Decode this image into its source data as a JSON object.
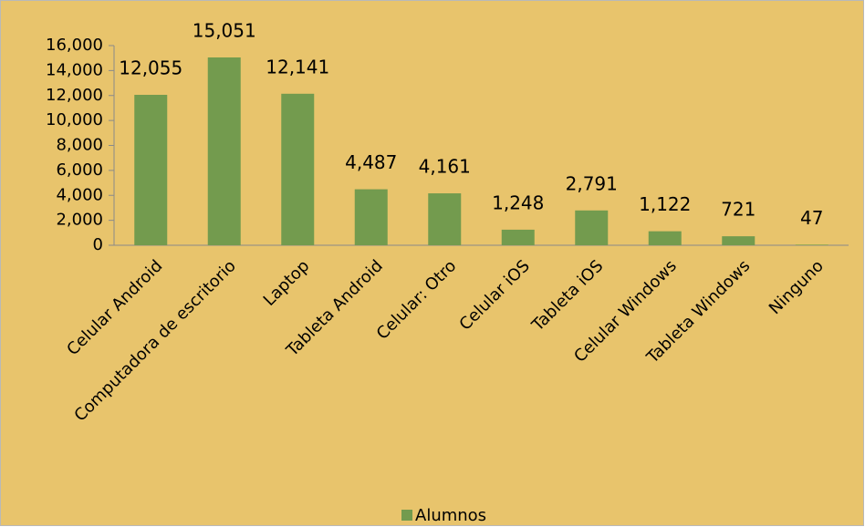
{
  "chart_data": {
    "type": "bar",
    "categories": [
      "Celular Android",
      "Computadora de escritorio",
      "Laptop",
      "Tableta Android",
      "Celular: Otro",
      "Celular iOS",
      "Tableta iOS",
      "Celular Windows",
      "Tableta Windows",
      "Ninguno"
    ],
    "series": [
      {
        "name": "Alumnos",
        "color": "#739b4e",
        "values": [
          12055,
          15051,
          12141,
          4487,
          4161,
          1248,
          2791,
          1122,
          721,
          47
        ],
        "value_labels": [
          "12,055",
          "15,051",
          "12,141",
          "4,487",
          "4,161",
          "1,248",
          "2,791",
          "1,122",
          "721",
          "47"
        ]
      }
    ],
    "ylim": [
      0,
      16000
    ],
    "yticks": [
      0,
      {
        "value": 2000,
        "label": "2,000"
      },
      {
        "value": 4000,
        "label": "4,000"
      },
      {
        "value": 6000,
        "label": "6,000"
      },
      {
        "value": 8000,
        "label": "8,000"
      },
      {
        "value": 10000,
        "label": "10,000"
      },
      {
        "value": 12000,
        "label": "12,000"
      },
      {
        "value": 14000,
        "label": "14,000"
      },
      {
        "value": 16000,
        "label": "16,000"
      }
    ],
    "background": "#e8c46c",
    "legend": "bottom"
  }
}
